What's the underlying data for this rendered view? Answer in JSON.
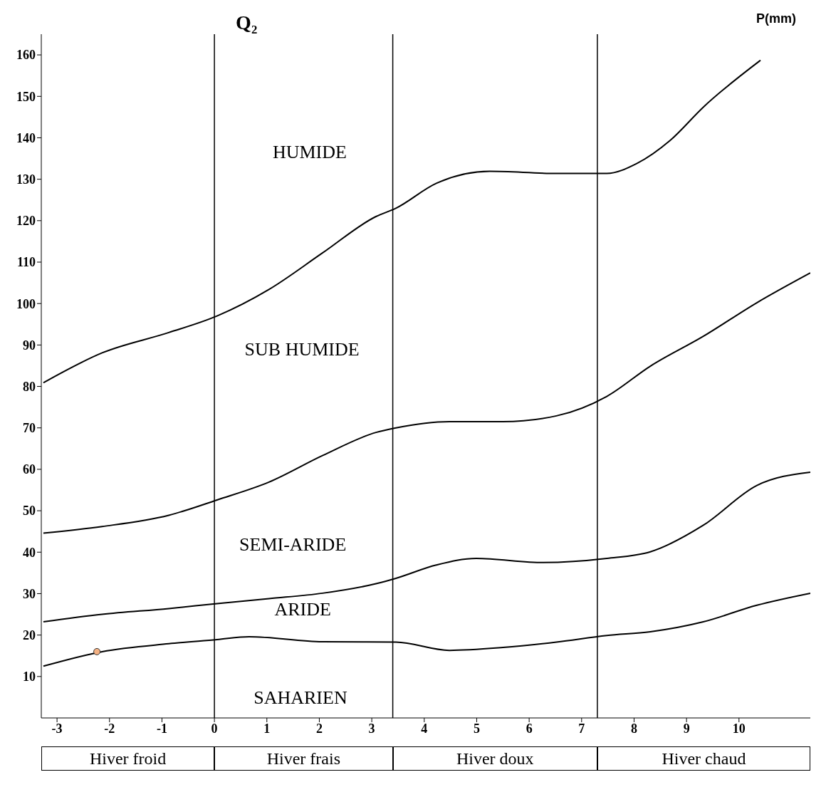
{
  "chart_data": {
    "type": "line",
    "ylabel": "Q₂",
    "xlim": [
      -3.3,
      11.36
    ],
    "ylim": [
      0,
      165
    ],
    "xticks": [
      -3,
      -2,
      -1,
      0,
      1,
      2,
      3,
      4,
      5,
      6,
      7,
      8,
      9,
      10
    ],
    "yticks": [
      10,
      20,
      30,
      40,
      50,
      60,
      70,
      80,
      90,
      100,
      110,
      120,
      130,
      140,
      150,
      160
    ],
    "grid": false,
    "line_style": "solid",
    "series": [
      {
        "color": "#000000",
        "x": [
          -3.26,
          -2.14,
          -0.87,
          0.05,
          1.04,
          2.06,
          3.08,
          3.46,
          4.23,
          5.25,
          6.52,
          7.48,
          8.05,
          8.69,
          9.32,
          10.41
        ],
        "values": [
          80.9,
          88.1,
          93,
          97,
          103.4,
          112.2,
          121,
          123,
          129,
          131.9,
          131.4,
          131.4,
          133.8,
          139.4,
          147.4,
          158.7
        ]
      },
      {
        "color": "#000000",
        "x": [
          -3.26,
          -2.14,
          -0.87,
          0.05,
          1.04,
          2.06,
          3.08,
          3.46,
          4.48,
          5.5,
          6.52,
          7.48,
          8.31,
          9.32,
          10.34,
          11.36
        ],
        "values": [
          44.6,
          46.2,
          48.9,
          52.6,
          56.9,
          63.3,
          68.9,
          70,
          71.5,
          71.5,
          72.9,
          77.6,
          84.9,
          92.1,
          100.2,
          107.4
        ]
      },
      {
        "color": "#000000",
        "x": [
          -3.26,
          -2.14,
          -0.87,
          0.05,
          1.04,
          2.06,
          3.08,
          3.46,
          4.23,
          4.99,
          6.27,
          7.48,
          8.31,
          9.32,
          10.34,
          11.36
        ],
        "values": [
          23.2,
          25,
          26.4,
          27.6,
          28.8,
          30.1,
          32.4,
          33.7,
          36.9,
          38.5,
          37.5,
          38.5,
          40.1,
          46.5,
          56.1,
          59.3
        ]
      },
      {
        "color": "#000000",
        "x": [
          -3.26,
          -2.14,
          -0.87,
          0.05,
          0.66,
          2.06,
          3.46,
          4.48,
          5.5,
          6.52,
          7.48,
          8.31,
          9.32,
          10.34,
          11.36
        ],
        "values": [
          12.5,
          16,
          17.9,
          18.9,
          19.6,
          18.4,
          18.3,
          16.3,
          17,
          18.3,
          19.9,
          20.8,
          23.2,
          27.2,
          30.1
        ]
      },
      {
        "type": "scatter",
        "marker": "circle",
        "color": "#f4b183",
        "x": [
          -2.24
        ],
        "values": [
          16
        ]
      }
    ],
    "ref_lines": [
      {
        "axis": "x",
        "value": 0
      },
      {
        "axis": "x",
        "value": 3.4
      },
      {
        "axis": "x",
        "value": 7.3
      }
    ],
    "annotations": [
      "HUMIDE",
      "SUB HUMIDE",
      "SEMI-ARIDE",
      "ARIDE",
      "SAHARIEN",
      "Hiver froid",
      "Hiver frais",
      "Hiver doux",
      "Hiver chaud",
      "P(mm)"
    ]
  }
}
